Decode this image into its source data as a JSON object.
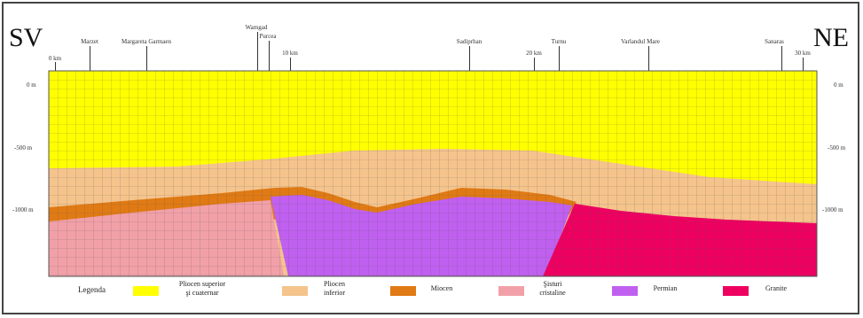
{
  "sides": {
    "left": "SV",
    "right": "NE"
  },
  "places": [
    {
      "name": "0 km"
    },
    {
      "name": "Marzet"
    },
    {
      "name": "Margareta Garmaen"
    },
    {
      "name": "Wamgad"
    },
    {
      "name": "Purcea"
    },
    {
      "name": "10 km"
    },
    {
      "name": "Sadiprhan"
    },
    {
      "name": "20 km"
    },
    {
      "name": "Turnu"
    },
    {
      "name": "Varlandul Mare"
    },
    {
      "name": "Sanaras"
    },
    {
      "name": "30 km"
    }
  ],
  "depths_left": [
    "0 m",
    "-500 m",
    "-1000 m"
  ],
  "depths_right": [
    "0 m",
    "-500 m",
    "-1000 m"
  ],
  "legend": {
    "title": "Legenda",
    "items": [
      {
        "label_line1": "Pliocen superior",
        "label_line2": "şi cuaternar",
        "color": "#ffff00"
      },
      {
        "label_line1": "Pliocen",
        "label_line2": "inferior",
        "color": "#f5c48c"
      },
      {
        "label_line1": "Miocen",
        "label_line2": "",
        "color": "#e07a14"
      },
      {
        "label_line1": "Şisturi",
        "label_line2": "cristaline",
        "color": "#f2a0a8"
      },
      {
        "label_line1": "Permian",
        "label_line2": "",
        "color": "#c060f0"
      },
      {
        "label_line1": "Granite",
        "label_line2": "",
        "color": "#ee0060"
      }
    ]
  }
}
